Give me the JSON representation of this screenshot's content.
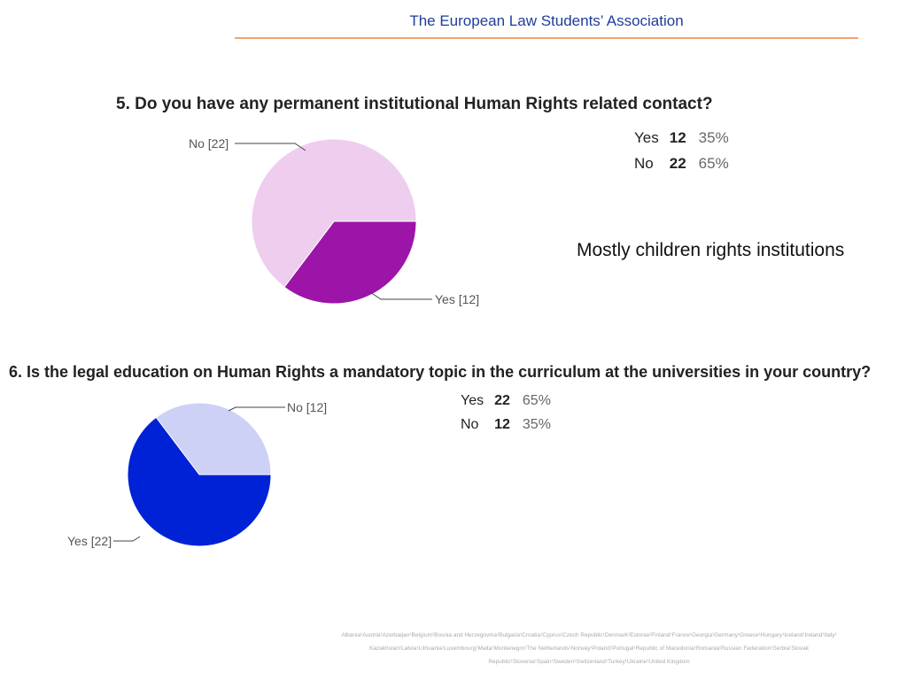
{
  "header": {
    "title": "The European Law Students’ Association"
  },
  "note": "Mostly children rights institutions",
  "chart_data": [
    {
      "type": "pie",
      "title": "5. Do you have any permanent institutional Human Rights related contact?",
      "slices": [
        {
          "label": "Yes",
          "count": 12,
          "percent": "35%",
          "slice_label": "Yes [12]",
          "color": "#9c14a8"
        },
        {
          "label": "No",
          "count": 22,
          "percent": "65%",
          "slice_label": "No [22]",
          "color": "#efcdef"
        }
      ]
    },
    {
      "type": "pie",
      "title": "6. Is the legal education on Human Rights a mandatory topic in the curriculum at the universities in your country?",
      "slices": [
        {
          "label": "Yes",
          "count": 22,
          "percent": "65%",
          "slice_label": "Yes [22]",
          "color": "#0022d6"
        },
        {
          "label": "No",
          "count": 12,
          "percent": "35%",
          "slice_label": "No [12]",
          "color": "#cdd1f5"
        }
      ]
    }
  ],
  "footer": {
    "countries": "Albania¹Austria¹Azerbaijan¹Belgium¹Bosnia and Herzegovina¹Bulgaria¹Croatia¹Cyprus¹Czech Republic¹Denmark¹Estonia¹Finland¹France¹Georgia¹Germany¹Greece¹Hungary¹Iceland¹Ireland¹Italy¹ Kazakhstan¹Latvia¹Lithuania¹Luxembourg¹Malta¹Montenegro¹The Netherlands¹Norway¹Poland¹Portugal¹Republic of Macedonia¹Romania¹Russian Federation¹Serbia¹Slovak Republic¹Slovenia¹Spain¹Sweden¹Switzerland¹Turkey¹Ukraine¹United Kingdom"
  }
}
